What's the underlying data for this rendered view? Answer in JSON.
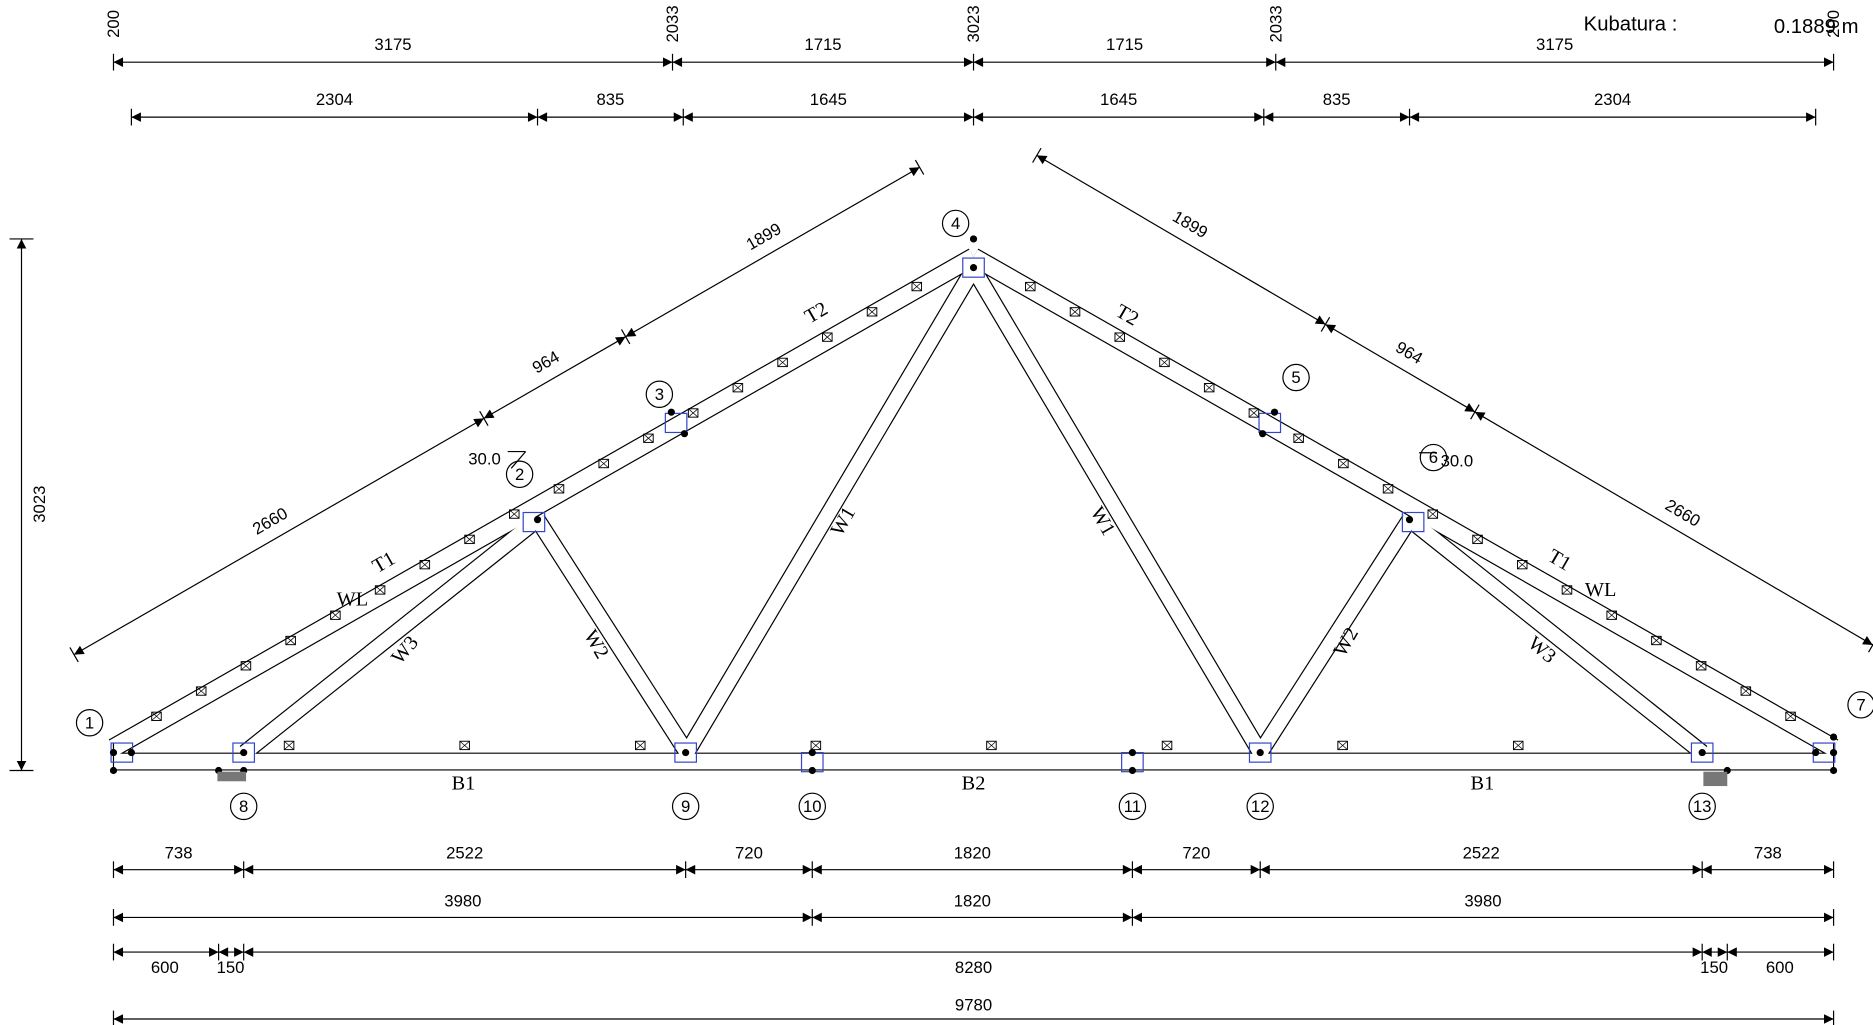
{
  "header": {
    "volume_label": "Kubatura :",
    "volume_value": "0.1889 m"
  },
  "dimensions": {
    "top_vertical": [
      200,
      2033,
      3023,
      2033,
      200
    ],
    "top_row1": [
      3175,
      1715,
      1715,
      3175
    ],
    "top_row2": [
      2304,
      835,
      1645,
      1645,
      835,
      2304
    ],
    "height": 3023,
    "left_slope": [
      2660,
      964,
      1899
    ],
    "right_slope": [
      1899,
      964,
      2660
    ],
    "bottom_row1": [
      738,
      2522,
      720,
      1820,
      720,
      2522,
      738
    ],
    "bottom_row2": [
      3980,
      1820,
      3980
    ],
    "bottom_row3": [
      600,
      150,
      8280,
      150,
      600
    ],
    "overall": 9780
  },
  "angles": [
    "30.0",
    "30.0"
  ],
  "nodes": [
    "1",
    "2",
    "3",
    "4",
    "5",
    "6",
    "7",
    "8",
    "9",
    "10",
    "11",
    "12",
    "13"
  ],
  "members": [
    "T1",
    "WL",
    "W3",
    "W2",
    "W1",
    "T2",
    "W1",
    "T2",
    "W2",
    "W3",
    "T1",
    "WL",
    "B1",
    "B2",
    "B1"
  ]
}
